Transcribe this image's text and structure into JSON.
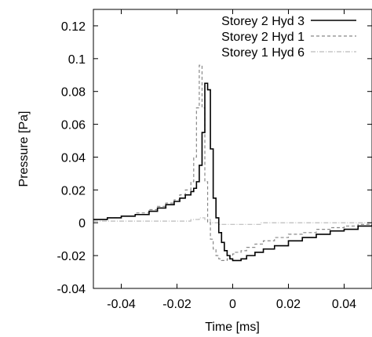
{
  "chart_data": {
    "type": "line",
    "title": "",
    "xlabel": "Time [ms]",
    "ylabel": "Pressure [Pa]",
    "xlim": [
      -0.05,
      0.05
    ],
    "ylim": [
      -0.04,
      0.13
    ],
    "x_ticks": [
      -0.04,
      -0.02,
      0,
      0.02,
      0.04
    ],
    "x_tick_labels": [
      "-0.04",
      "-0.02",
      "0",
      "0.02",
      "0.04"
    ],
    "y_ticks": [
      -0.04,
      -0.02,
      0,
      0.02,
      0.04,
      0.06,
      0.08,
      0.1,
      0.12
    ],
    "y_tick_labels": [
      "-0.04",
      "-0.02",
      "0",
      "0.02",
      "0.04",
      "0.06",
      "0.08",
      "0.1",
      "0.12"
    ],
    "grid": false,
    "legend_position": "top-right",
    "step": true,
    "series": [
      {
        "name": "Storey 2 Hyd 3",
        "color": "#000000",
        "dash": "solid",
        "x": [
          -0.05,
          -0.045,
          -0.04,
          -0.035,
          -0.03,
          -0.027,
          -0.024,
          -0.021,
          -0.019,
          -0.017,
          -0.015,
          -0.014,
          -0.013,
          -0.012,
          -0.011,
          -0.01,
          -0.009,
          -0.008,
          -0.007,
          -0.006,
          -0.005,
          -0.004,
          -0.003,
          -0.002,
          -0.001,
          0.0,
          0.001,
          0.003,
          0.005,
          0.008,
          0.011,
          0.015,
          0.02,
          0.025,
          0.03,
          0.035,
          0.04,
          0.045,
          0.05
        ],
        "y": [
          0.002,
          0.003,
          0.004,
          0.005,
          0.007,
          0.009,
          0.011,
          0.013,
          0.015,
          0.017,
          0.019,
          0.021,
          0.025,
          0.035,
          0.055,
          0.085,
          0.081,
          0.045,
          0.015,
          0.003,
          -0.006,
          -0.012,
          -0.017,
          -0.02,
          -0.022,
          -0.023,
          -0.023,
          -0.022,
          -0.02,
          -0.018,
          -0.016,
          -0.014,
          -0.011,
          -0.009,
          -0.007,
          -0.005,
          -0.004,
          -0.002,
          -0.001
        ]
      },
      {
        "name": "Storey 2 Hyd 1",
        "color": "#888888",
        "dash": "4,3",
        "x": [
          -0.05,
          -0.045,
          -0.04,
          -0.035,
          -0.03,
          -0.027,
          -0.024,
          -0.021,
          -0.019,
          -0.017,
          -0.015,
          -0.014,
          -0.013,
          -0.012,
          -0.011,
          -0.01,
          -0.009,
          -0.008,
          -0.007,
          -0.006,
          -0.005,
          -0.004,
          -0.003,
          -0.002,
          -0.001,
          0.0,
          0.001,
          0.003,
          0.005,
          0.008,
          0.011,
          0.015,
          0.02,
          0.025,
          0.03,
          0.035,
          0.04,
          0.045,
          0.05
        ],
        "y": [
          0.002,
          0.003,
          0.004,
          0.006,
          0.008,
          0.01,
          0.012,
          0.014,
          0.017,
          0.02,
          0.025,
          0.04,
          0.07,
          0.096,
          0.07,
          0.025,
          0.0,
          -0.01,
          -0.016,
          -0.02,
          -0.022,
          -0.023,
          -0.023,
          -0.022,
          -0.02,
          -0.019,
          -0.018,
          -0.017,
          -0.015,
          -0.013,
          -0.011,
          -0.009,
          -0.007,
          -0.006,
          -0.004,
          -0.003,
          -0.002,
          -0.001,
          -0.001
        ]
      },
      {
        "name": "Storey 1 Hyd 6",
        "color": "#bbbbbb",
        "dash": "6,2,1,2",
        "x": [
          -0.05,
          -0.04,
          -0.03,
          -0.02,
          -0.015,
          -0.012,
          -0.01,
          -0.008,
          -0.005,
          0.0,
          0.005,
          0.01,
          0.02,
          0.03,
          0.04,
          0.05
        ],
        "y": [
          0.001,
          0.001,
          0.001,
          0.001,
          0.002,
          0.003,
          0.002,
          0.0,
          -0.001,
          -0.001,
          -0.001,
          0.0,
          0.0,
          0.0,
          0.0,
          0.0
        ]
      }
    ]
  }
}
